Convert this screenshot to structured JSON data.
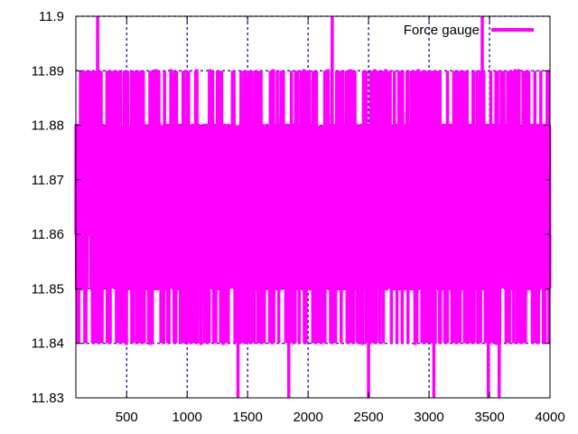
{
  "chart_data": {
    "type": "line",
    "title": "",
    "xlabel": "",
    "ylabel": "",
    "xlim": [
      80,
      4000
    ],
    "ylim": [
      11.83,
      11.9
    ],
    "x_ticks": [
      500,
      1000,
      1500,
      2000,
      2500,
      3000,
      3500,
      4000
    ],
    "x_tick_labels": [
      "500",
      "1000",
      "1500",
      "2000",
      "2500",
      "3000",
      "3500",
      "4000"
    ],
    "y_ticks": [
      11.83,
      11.84,
      11.85,
      11.86,
      11.87,
      11.88,
      11.89,
      11.9
    ],
    "y_tick_labels": [
      "11.83",
      "11.84",
      "11.85",
      "11.86",
      "11.87",
      "11.88",
      "11.89",
      "11.9"
    ],
    "grid": true,
    "legend_position": "top-right",
    "colors": {
      "series": "#ff00ff",
      "grid": "#0000a0",
      "axis": "#000000"
    },
    "series": [
      {
        "name": "Force gauge",
        "noise": {
          "range": [
            11.83,
            11.9
          ],
          "typical_range": [
            11.85,
            11.88
          ],
          "dense_range": [
            11.85,
            11.89
          ],
          "sample_count": 3920
        },
        "spikes_high": [
          {
            "x": 260,
            "y": 11.9
          },
          {
            "x": 2200,
            "y": 11.9
          },
          {
            "x": 3440,
            "y": 11.9
          }
        ],
        "spikes_low": [
          {
            "x": 1420,
            "y": 11.83
          },
          {
            "x": 1840,
            "y": 11.83
          },
          {
            "x": 2500,
            "y": 11.83
          },
          {
            "x": 3040,
            "y": 11.83
          },
          {
            "x": 3490,
            "y": 11.83
          },
          {
            "x": 3580,
            "y": 11.83
          }
        ]
      }
    ]
  }
}
